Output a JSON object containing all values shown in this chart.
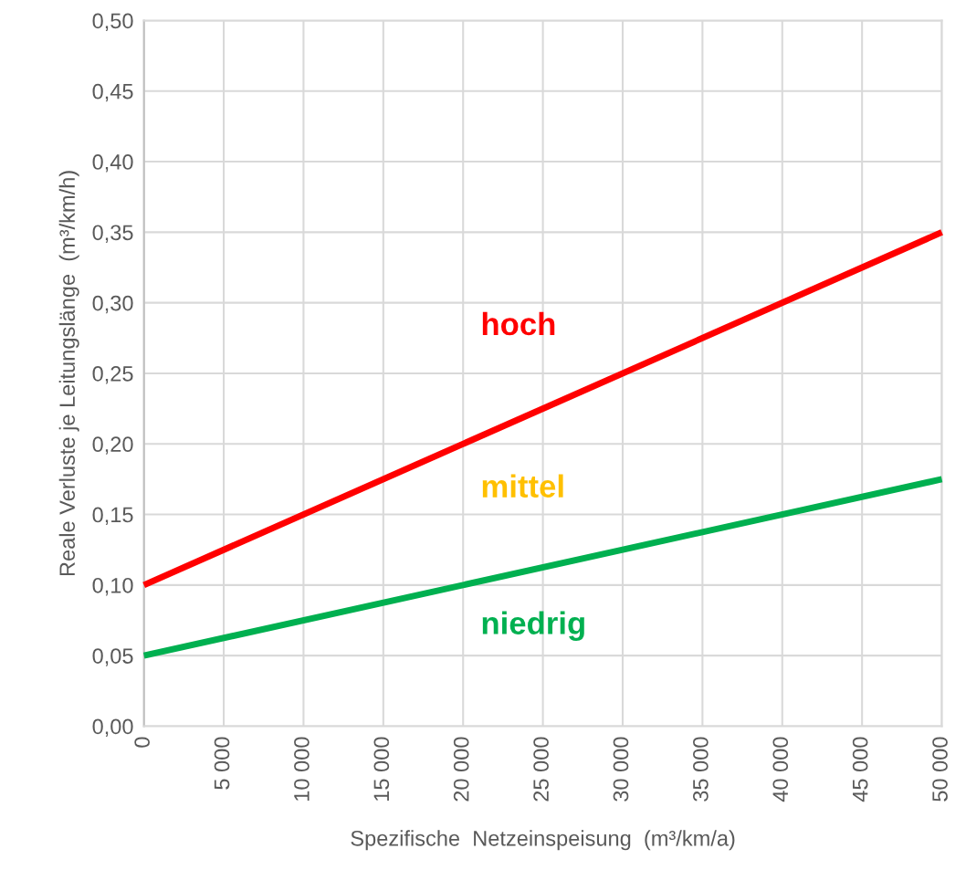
{
  "chart_data": {
    "type": "line",
    "xlabel": "Spezifische  Netzeinspeisung  (m³/km/a)",
    "ylabel": "Reale Verluste je Leitungslänge  (m³/km/h)",
    "series": [
      {
        "name": "hoch",
        "color": "#ff0000",
        "values": [
          0.1,
          0.35
        ]
      },
      {
        "name": "niedrig",
        "color": "#00b050",
        "values": [
          0.05,
          0.175
        ]
      }
    ],
    "annotations": [
      "mittel"
    ],
    "x": [
      0,
      50000
    ],
    "xlim": [
      0,
      50000
    ],
    "ylim": [
      0,
      0.5
    ],
    "xticks": [
      0,
      {
        "value": 5000,
        "label": "5 000"
      },
      {
        "value": 10000,
        "label": "10 000"
      },
      {
        "value": 15000,
        "label": "15 000"
      },
      {
        "value": 20000,
        "label": "20 000"
      },
      {
        "value": 25000,
        "label": "25 000"
      },
      {
        "value": 30000,
        "label": "30 000"
      },
      {
        "value": 35000,
        "label": "35 000"
      },
      {
        "value": 40000,
        "label": "40 000"
      },
      {
        "value": 45000,
        "label": "45 000"
      },
      {
        "value": 50000,
        "label": "50 000"
      }
    ],
    "yticks": [
      {
        "value": 0,
        "label": "0,00"
      },
      {
        "value": 0.05,
        "label": "0,05"
      },
      {
        "value": 0.1,
        "label": "0,10"
      },
      {
        "value": 0.15,
        "label": "0,15"
      },
      {
        "value": 0.2,
        "label": "0,20"
      },
      {
        "value": 0.25,
        "label": "0,25"
      },
      {
        "value": 0.3,
        "label": "0,30"
      },
      {
        "value": 0.35,
        "label": "0,35"
      },
      {
        "value": 0.4,
        "label": "0,40"
      },
      {
        "value": 0.45,
        "label": "0,45"
      },
      {
        "value": 0.5,
        "label": "0,50"
      }
    ],
    "grid": true,
    "legend": false,
    "marker": "none",
    "line_style": "solid"
  }
}
